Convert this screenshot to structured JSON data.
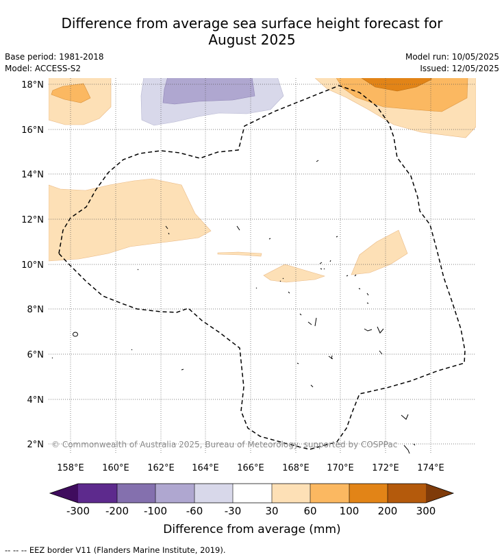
{
  "title_line1": "Difference from average sea surface height forecast for",
  "title_line2": "August 2025",
  "base_period": "Base period: 1981-2018",
  "model": "Model: ACCESS-S2",
  "model_run": "Model run: 10/05/2025",
  "issued": "Issued: 12/05/2025",
  "copyright": "© Commonwealth of Australia 2025, Bureau of Meteorology, supported by COSPPac",
  "footnote": "-- -- -- EEZ border V11 (Flanders Marine Institute, 2019).",
  "map": {
    "lon_ticks": [
      "158°E",
      "160°E",
      "162°E",
      "164°E",
      "166°E",
      "168°E",
      "170°E",
      "172°E",
      "174°E"
    ],
    "lat_ticks": [
      "18°N",
      "16°N",
      "14°N",
      "12°N",
      "10°N",
      "8°N",
      "6°N",
      "4°N",
      "2°N"
    ],
    "lon_range": [
      157.0,
      176.0
    ],
    "lat_range": [
      1.5,
      18.3
    ]
  },
  "colorbar": {
    "title": "Difference from average (mm)",
    "labels": [
      "-300",
      "-200",
      "-100",
      "-60",
      "-30",
      "30",
      "60",
      "100",
      "200",
      "300"
    ],
    "colors": [
      "#3f0c5e",
      "#5d2a8d",
      "#8470ae",
      "#afa7d0",
      "#d8d8ea",
      "#ffffff",
      "#fde0b6",
      "#fbb861",
      "#e28417",
      "#b45a0c",
      "#7f3b0a"
    ]
  }
}
